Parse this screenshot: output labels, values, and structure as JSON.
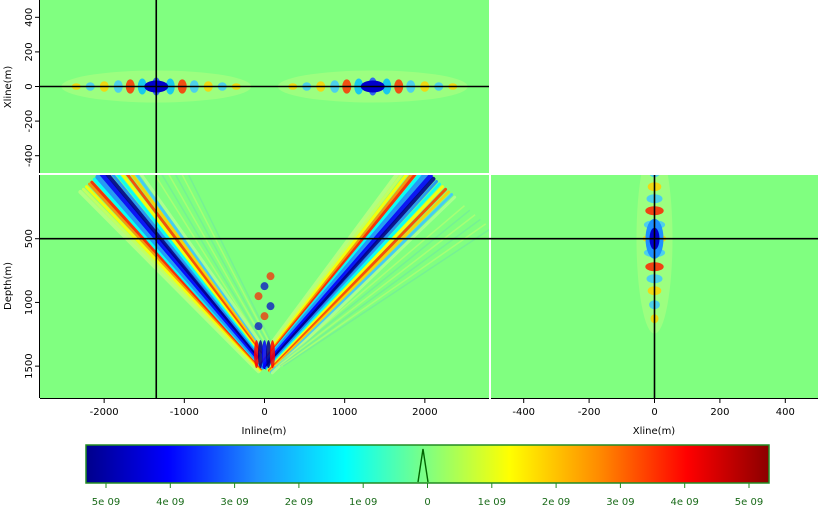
{
  "chart_data": [
    {
      "type": "heatmap",
      "panel": "inline-xline-slice",
      "xlabel": "",
      "ylabel": "Xline(m)",
      "xlim": [
        -2800,
        2800
      ],
      "ylim": [
        -500,
        500
      ],
      "y_ticks": [
        400,
        200,
        0,
        -200,
        -400
      ],
      "y_tick_labels": [
        "400",
        "200",
        "0",
        "-200",
        "-400"
      ],
      "crosshair": {
        "x": -1350,
        "y": 0
      },
      "wave_centers_inline": [
        -1350,
        1350
      ]
    },
    {
      "type": "heatmap",
      "panel": "inline-depth-slice",
      "xlabel": "Inline(m)",
      "ylabel": "Depth(m)",
      "xlim": [
        -2800,
        2800
      ],
      "ylim": [
        1750,
        0
      ],
      "x_ticks": [
        -2000,
        -1000,
        0,
        1000,
        2000
      ],
      "x_tick_labels": [
        "-2000",
        "-1000",
        "0",
        "1000",
        "2000"
      ],
      "y_ticks": [
        500,
        1000,
        1500
      ],
      "y_tick_labels": [
        "500",
        "1000",
        "1500"
      ],
      "crosshair": {
        "x": -1350,
        "y": 500
      },
      "v_apex": {
        "x": 0,
        "y": 1500
      },
      "v_tops": [
        {
          "x": -2050,
          "y": 0
        },
        {
          "x": 2050,
          "y": 0
        }
      ]
    },
    {
      "type": "heatmap",
      "panel": "xline-depth-slice",
      "xlabel": "Xline(m)",
      "ylabel": "",
      "xlim": [
        -500,
        500
      ],
      "ylim": [
        1750,
        0
      ],
      "x_ticks": [
        -400,
        -200,
        0,
        200,
        400
      ],
      "x_tick_labels": [
        "-400",
        "-200",
        "0",
        "200",
        "400"
      ],
      "crosshair": {
        "x": 0,
        "y": 500
      }
    }
  ],
  "colorbar": {
    "ticks": [
      5,
      4,
      3,
      2,
      1,
      0,
      1,
      2,
      3,
      4,
      5
    ],
    "tick_labels": [
      "5e 09",
      "4e 09",
      "3e 09",
      "2e 09",
      "1e 09",
      "0",
      "1e 09",
      "2e 09",
      "3e 09",
      "4e 09",
      "5e 09"
    ],
    "colors": [
      "#00008b",
      "#0000ff",
      "#1e90ff",
      "#00ffff",
      "#80ff80",
      "#ffff00",
      "#ff8c00",
      "#ff0000",
      "#8b0000"
    ],
    "background": "#80ff80"
  }
}
